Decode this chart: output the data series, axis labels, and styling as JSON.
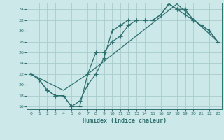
{
  "xlabel": "Humidex (Indice chaleur)",
  "bg_color": "#cde8e8",
  "grid_color": "#aacccc",
  "line_color": "#2e7070",
  "xlim": [
    -0.5,
    23.5
  ],
  "ylim": [
    15.5,
    35.2
  ],
  "xticks": [
    0,
    1,
    2,
    3,
    4,
    5,
    6,
    7,
    8,
    9,
    10,
    11,
    12,
    13,
    14,
    15,
    16,
    17,
    18,
    19,
    20,
    21,
    22,
    23
  ],
  "yticks": [
    16,
    18,
    20,
    22,
    24,
    26,
    28,
    30,
    32,
    34
  ],
  "line1_x": [
    0,
    1,
    2,
    3,
    4,
    5,
    6,
    7,
    8,
    9,
    10,
    11,
    12,
    13,
    14,
    15,
    16,
    17,
    18,
    19,
    20,
    21,
    22,
    23
  ],
  "line1_y": [
    22,
    21,
    19,
    18,
    18,
    16,
    16,
    22,
    26,
    26,
    28,
    29,
    31,
    32,
    32,
    32,
    33,
    35,
    34,
    34,
    32,
    31,
    30,
    28
  ],
  "line2_x": [
    0,
    1,
    2,
    3,
    4,
    5,
    6,
    7,
    8,
    9,
    10,
    11,
    12,
    13,
    14,
    15,
    16,
    17,
    18,
    19,
    20,
    21,
    22,
    23
  ],
  "line2_y": [
    22,
    21,
    19,
    18,
    18,
    16,
    17,
    20,
    22,
    25,
    30,
    31,
    32,
    32,
    32,
    32,
    33,
    35,
    34,
    33,
    32,
    31,
    30,
    28
  ],
  "line3_x": [
    0,
    4,
    7,
    18,
    23
  ],
  "line3_y": [
    22,
    19,
    22,
    35,
    28
  ]
}
